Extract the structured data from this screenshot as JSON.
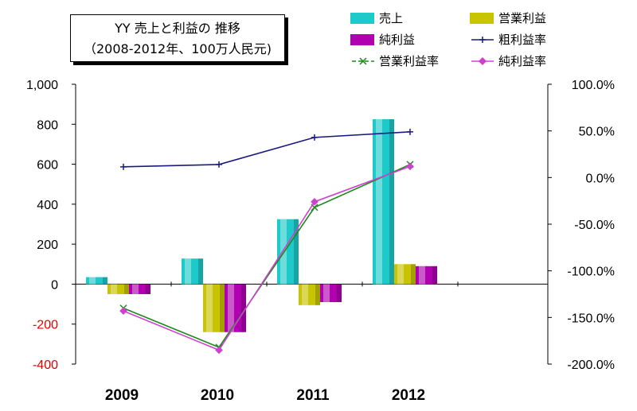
{
  "title": {
    "line1": "YY 売上と利益の 推移",
    "line2": "（2008-2012年、100万人民元)"
  },
  "legend": [
    {
      "label": "売上",
      "kind": "bar",
      "color": "#1ec9c9",
      "col": 0,
      "row": 0
    },
    {
      "label": "営業利益",
      "kind": "bar",
      "color": "#c8c400",
      "col": 1,
      "row": 0
    },
    {
      "label": "純利益",
      "kind": "bar",
      "color": "#b000b0",
      "col": 0,
      "row": 1
    },
    {
      "label": "粗利益率",
      "kind": "line",
      "color": "#1a1a80",
      "marker": "plus",
      "col": 1,
      "row": 1
    },
    {
      "label": "営業利益率",
      "kind": "line",
      "color": "#1a8a1a",
      "marker": "x",
      "dashed": true,
      "col": 0,
      "row": 2
    },
    {
      "label": "純利益率",
      "kind": "line",
      "color": "#d040d0",
      "marker": "diamond",
      "col": 1,
      "row": 2
    }
  ],
  "chart_data": {
    "type": "bar",
    "categories": [
      "2009",
      "2010",
      "2011",
      "2012"
    ],
    "series": [
      {
        "name": "売上",
        "axis": "left",
        "type": "bar",
        "color": "#1ec9c9",
        "values": [
          35,
          128,
          325,
          825
        ]
      },
      {
        "name": "営業利益",
        "axis": "left",
        "type": "bar",
        "color": "#c8c400",
        "values": [
          -50,
          -240,
          -105,
          100
        ]
      },
      {
        "name": "純利益",
        "axis": "left",
        "type": "bar",
        "color": "#b000b0",
        "values": [
          -50,
          -240,
          -90,
          90
        ]
      },
      {
        "name": "粗利益率",
        "axis": "right",
        "type": "line",
        "color": "#1a1a80",
        "values": [
          11.5,
          14,
          43,
          49
        ]
      },
      {
        "name": "営業利益率",
        "axis": "right",
        "type": "line",
        "color": "#1a8a1a",
        "values": [
          -140,
          -182,
          -32,
          14
        ]
      },
      {
        "name": "純利益率",
        "axis": "right",
        "type": "line",
        "color": "#d040d0",
        "values": [
          -143,
          -185,
          -26,
          12
        ]
      }
    ],
    "y_left": {
      "ylim": [
        -400,
        1000
      ],
      "ticks": [
        1000,
        800,
        600,
        400,
        200,
        0,
        -200,
        -400
      ],
      "tick_labels": [
        "1,000",
        "800",
        "600",
        "400",
        "200",
        "0",
        "-200",
        "-400"
      ]
    },
    "y_right": {
      "ylim": [
        -200,
        100
      ],
      "ticks": [
        100,
        50,
        0,
        -50,
        -100,
        -150,
        -200
      ],
      "tick_labels": [
        "100.0%",
        "50.0%",
        "0.0%",
        "-50.0%",
        "-100.0%",
        "-150.0%",
        "-200.0%"
      ]
    },
    "negative_label_color": "#e00000",
    "grid": false
  }
}
